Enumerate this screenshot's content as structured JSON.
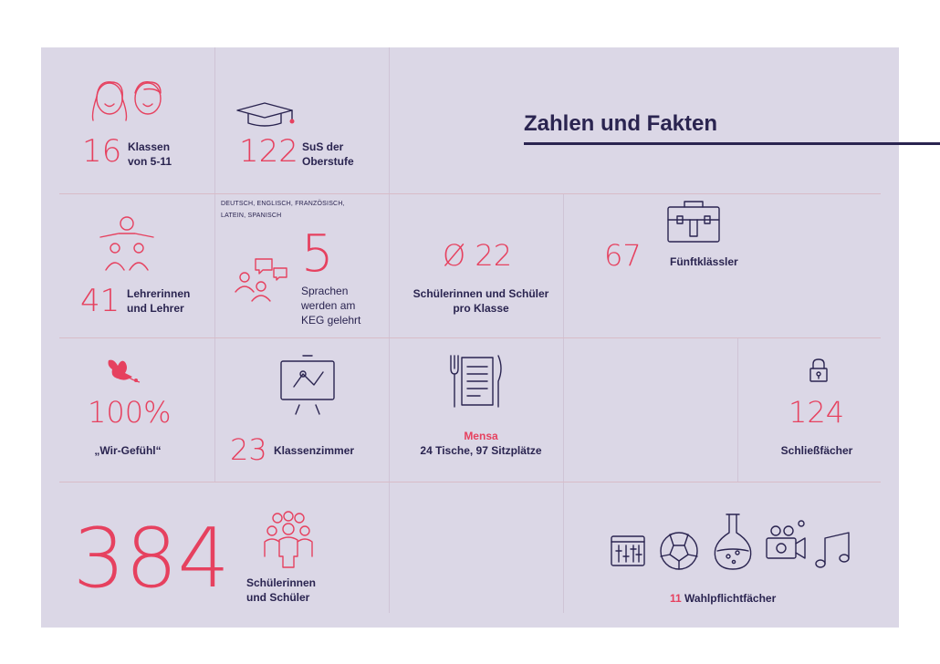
{
  "title": "Zahlen und Fakten",
  "colors": {
    "accent": "#e6415f",
    "dark": "#2a2450",
    "panel": "#dbd7e6"
  },
  "facts": {
    "klassen": {
      "number": "16",
      "label_line1": "Klassen",
      "label_line2": "von 5-11",
      "icon": "students-faces-icon"
    },
    "oberstufe": {
      "number": "122",
      "label_line1": "SuS der",
      "label_line2": "Oberstufe",
      "icon": "graduation-cap-icon"
    },
    "lehrer": {
      "number": "41",
      "label_line1": "Lehrerinnen",
      "label_line2": "und Lehrer",
      "icon": "teacher-group-icon"
    },
    "sprachen": {
      "languages_line1": "DEUTSCH, ENGLISCH, FRANZÖSISCH,",
      "languages_line2": "LATEIN, SPANISCH",
      "number": "5",
      "label_line1": "Sprachen",
      "label_line2": "werden am",
      "label_line3": "KEG gelehrt",
      "icon": "people-speech-icon"
    },
    "klassengroesse": {
      "number": "Ø 22",
      "label_line1": "Schülerinnen und Schüler",
      "label_line2": "pro Klasse"
    },
    "fuenftklaessler": {
      "number": "67",
      "label": "Fünftklässler",
      "icon": "briefcase-icon"
    },
    "wirgefuehl": {
      "number": "100%",
      "label": "„Wir-Gefühl“",
      "icon": "dove-icon"
    },
    "klassenzimmer": {
      "number": "23",
      "label": "Klassenzimmer",
      "icon": "presentation-board-icon"
    },
    "mensa": {
      "title": "Mensa",
      "label": "24 Tische, 97 Sitzplätze",
      "icon": "menu-cutlery-icon"
    },
    "schliessfaecher": {
      "number": "124",
      "label": "Schließfächer",
      "icon": "lock-icon"
    },
    "schueler": {
      "number": "384",
      "label_line1": "Schülerinnen",
      "label_line2": "und Schüler",
      "icon": "crowd-icon"
    },
    "wahlpflicht": {
      "number": "11",
      "label": "Wahlpflichtfächer",
      "icons": [
        "mixer-icon",
        "soccer-ball-icon",
        "flask-icon",
        "camera-icon",
        "music-note-icon"
      ]
    }
  }
}
